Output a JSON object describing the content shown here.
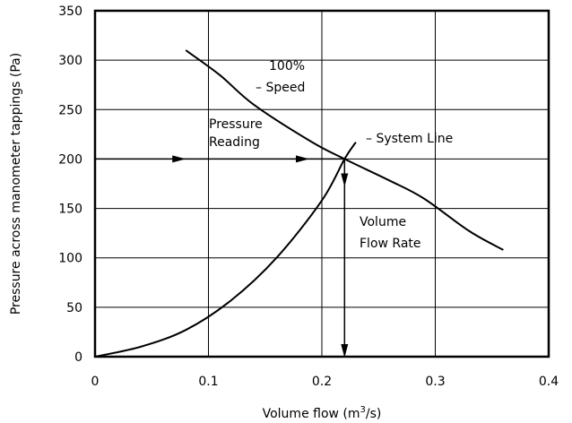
{
  "chart_data": {
    "type": "line",
    "title": "",
    "xlabel": "Volume flow (m³/s)",
    "xlabel_parts": {
      "base": "Volume flow (m",
      "sup": "3",
      "tail": "/s)"
    },
    "ylabel": "Pressure across manometer tappings (Pa)",
    "xlim": [
      0,
      0.4
    ],
    "ylim": [
      0,
      350
    ],
    "xticks": [
      0,
      0.1,
      0.2,
      0.3,
      0.4
    ],
    "xtick_labels": [
      "0",
      "0.1",
      "0.2",
      "0.3",
      "0.4"
    ],
    "yticks": [
      0,
      50,
      100,
      150,
      200,
      250,
      300,
      350
    ],
    "ytick_labels": [
      "0",
      "50",
      "100",
      "150",
      "200",
      "250",
      "300",
      "350"
    ],
    "grid": true,
    "series": [
      {
        "name": "100% Speed",
        "x": [
          0.08,
          0.11,
          0.14,
          0.19,
          0.22,
          0.26,
          0.29,
          0.33,
          0.36
        ],
        "y": [
          310,
          285,
          255,
          218,
          200,
          178,
          160,
          127,
          108
        ]
      },
      {
        "name": "System Line",
        "x": [
          0,
          0.04,
          0.08,
          0.12,
          0.16,
          0.2,
          0.22,
          0.23
        ],
        "y": [
          0,
          10,
          27,
          57,
          100,
          158,
          200,
          217
        ]
      }
    ],
    "operating_point": {
      "x": 0.22,
      "y": 200
    },
    "annotations": [
      {
        "id": "speed",
        "text_lines": [
          "100%",
          "– Speed"
        ]
      },
      {
        "id": "system",
        "text_lines": [
          "– System Line"
        ]
      },
      {
        "id": "pressure",
        "text_lines": [
          "Pressure",
          "Reading"
        ]
      },
      {
        "id": "flow",
        "text_lines": [
          "Volume",
          "Flow Rate"
        ]
      }
    ]
  }
}
